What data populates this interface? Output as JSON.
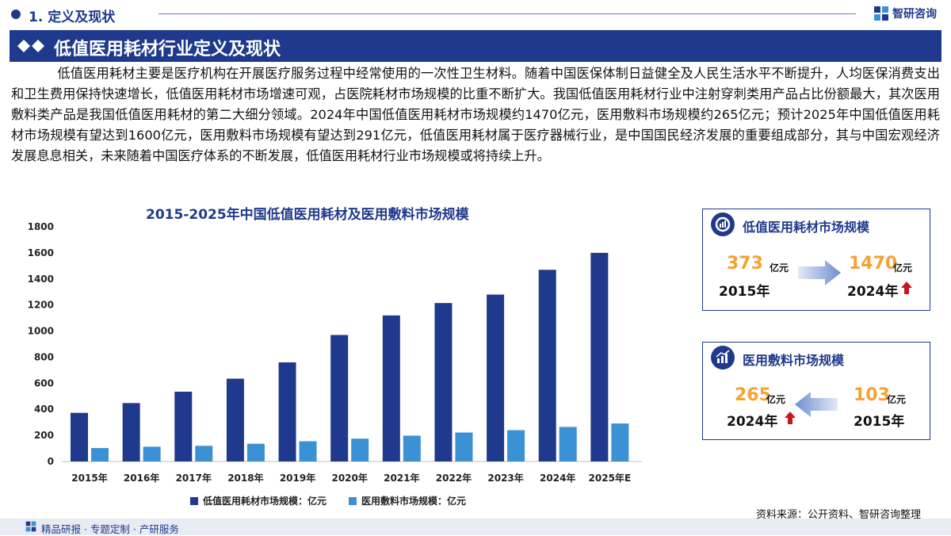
{
  "header": {
    "section": "1. 定义及现状",
    "brand": "智研咨询",
    "logo_icon": "zhiyan-logo-icon"
  },
  "banner": {
    "title": "低值医用耗材行业定义及现状"
  },
  "intro": "低值医用耗材主要是医疗机构在开展医疗服务过程中经常使用的一次性卫生材料。随着中国医保体制日益健全及人民生活水平不断提升，人均医保消费支出和卫生费用保持快速增长，低值医用耗材市场增速可观，占医院耗材市场规模的比重不断扩大。我国低值医用耗材行业中注射穿刺类用产品占比份额最大，其次医用敷料类产品是我国低值医用耗材的第二大细分领域。2024年中国低值医用耗材市场规模约1470亿元，医用敷料市场规模约265亿元；预计2025年中国低值医用耗材市场规模有望达到1600亿元，医用敷料市场规模有望达到291亿元，低值医用耗材属于医疗器械行业，是中国国民经济发展的重要组成部分，其与中国宏观经济发展息息相关，未来随着中国医疗体系的不断发展，低值医用耗材行业市场规模或将持续上升。",
  "chart_data": {
    "type": "bar",
    "title": "2015-2025年中国低值医用耗材及医用敷料市场规模",
    "categories": [
      "2015年",
      "2016年",
      "2017年",
      "2018年",
      "2019年",
      "2020年",
      "2021年",
      "2022年",
      "2023年",
      "2024年",
      "2025年E"
    ],
    "series": [
      {
        "name": "低值医用耗材市场规模：亿元",
        "color": "#1f3a8c",
        "values": [
          373,
          448,
          535,
          635,
          760,
          970,
          1120,
          1215,
          1280,
          1470,
          1600
        ]
      },
      {
        "name": "医用敷料市场规模：亿元",
        "color": "#3a91d3",
        "values": [
          103,
          113,
          120,
          136,
          155,
          175,
          198,
          222,
          240,
          265,
          291
        ]
      }
    ],
    "yticks": [
      "0",
      "200",
      "400",
      "600",
      "800",
      "1000",
      "1200",
      "1400",
      "1600",
      "1800"
    ],
    "ylim": [
      0,
      1800
    ],
    "grid": false,
    "legend": "bottom"
  },
  "card1": {
    "title": "低值医用耗材市场规模",
    "icon": "chart-gauge-icon",
    "from_value": "373",
    "from_unit": "亿元",
    "from_year": "2015年",
    "to_value": "1470",
    "to_unit": "亿元",
    "to_year": "2024年"
  },
  "card2": {
    "title": "医用敷料市场规模",
    "icon": "bar-chart-icon",
    "left_value": "265",
    "left_unit": "亿元",
    "left_year": "2024年",
    "right_value": "103",
    "right_unit": "亿元",
    "right_year": "2015年"
  },
  "source": "资料来源：公开资料、智研咨询整理",
  "footer": "精品研报 · 专题定制 · 产研服务",
  "colors": {
    "brand": "#1f3a8c",
    "accent": "#f4a233",
    "up": "#c8161d",
    "series2": "#3a91d3"
  }
}
